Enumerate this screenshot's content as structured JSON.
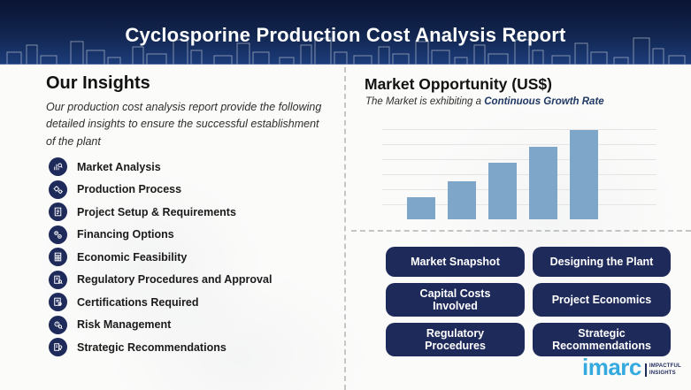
{
  "header": {
    "title": "Cyclosporine Production Cost Analysis Report"
  },
  "insights": {
    "heading": "Our Insights",
    "description": "Our production cost analysis report provide the following detailed insights to ensure the successful establishment of the plant",
    "items": [
      {
        "label": "Market Analysis",
        "icon": "bar-chart-magnifier-icon"
      },
      {
        "label": "Production Process",
        "icon": "gears-icon"
      },
      {
        "label": "Project Setup & Requirements",
        "icon": "document-icon"
      },
      {
        "label": "Financing Options",
        "icon": "coins-icon"
      },
      {
        "label": "Economic Feasibility",
        "icon": "calculator-icon"
      },
      {
        "label": "Regulatory Procedures and Approval",
        "icon": "document-magnifier-icon"
      },
      {
        "label": "Certifications Required",
        "icon": "certificate-icon"
      },
      {
        "label": "Risk Management",
        "icon": "risk-badge-icon"
      },
      {
        "label": "Strategic Recommendations",
        "icon": "strategy-bulb-icon"
      }
    ]
  },
  "market": {
    "heading": "Market Opportunity (US$)",
    "subtitle_prefix": "The Market is exhibiting a ",
    "subtitle_highlight": "Continuous Growth Rate"
  },
  "chart_data": {
    "type": "bar",
    "categories": [
      "",
      "",
      "",
      "",
      ""
    ],
    "values": [
      25,
      43,
      64,
      82,
      101
    ],
    "title": "Market Opportunity (US$)",
    "xlabel": "",
    "ylabel": "",
    "ylim": [
      0,
      101
    ],
    "grid": true,
    "legend": false,
    "bar_color": "#7ea6c8",
    "note_style": "five unlabeled ascending bars above a dashed baseline, no tick labels"
  },
  "buttons": [
    "Market Snapshot",
    "Designing the Plant",
    "Capital Costs Involved",
    "Project Economics",
    "Regulatory Procedures",
    "Strategic Recommendations"
  ],
  "logo": {
    "brand": "imarc",
    "tagline_line1": "IMPACTFUL",
    "tagline_line2": "INSIGHTS"
  },
  "colors": {
    "header_navy_top": "#0a1332",
    "header_navy_bottom": "#1c3d7c",
    "accent_navy": "#1e2a5a",
    "subtitle_highlight_navy": "#1f3864",
    "bar_blue": "#7ea6c8",
    "brand_blue": "#35aadf",
    "divider_gray": "#c6c6c6"
  }
}
